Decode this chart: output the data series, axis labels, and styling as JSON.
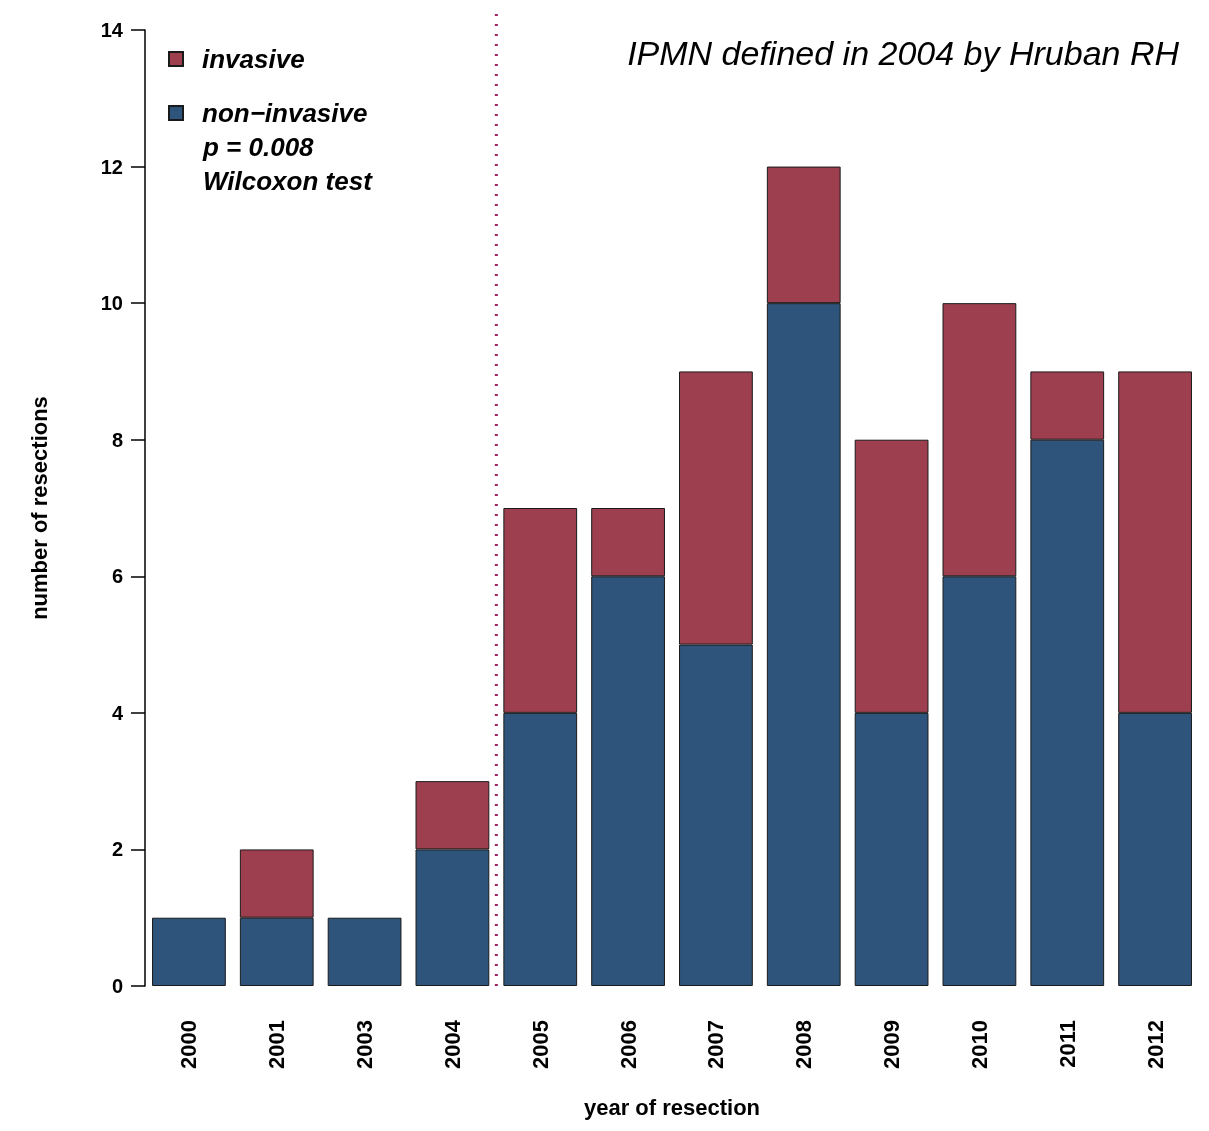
{
  "chart_data": {
    "type": "bar",
    "stacked": true,
    "xlabel": "year of resection",
    "ylabel": "number of resections",
    "categories": [
      "2000",
      "2001",
      "2003",
      "2004",
      "2005",
      "2006",
      "2007",
      "2008",
      "2009",
      "2010",
      "2011",
      "2012"
    ],
    "series": [
      {
        "name": "non−invasive",
        "color": "#2e547c",
        "values": [
          1,
          1,
          1,
          2,
          4,
          6,
          5,
          10,
          4,
          6,
          8,
          4
        ]
      },
      {
        "name": "invasive",
        "color": "#9e3f50",
        "values": [
          0,
          1,
          0,
          1,
          3,
          1,
          4,
          2,
          4,
          4,
          1,
          5
        ]
      }
    ],
    "ylim": [
      0,
      14
    ],
    "yticks": [
      0,
      2,
      4,
      6,
      8,
      10,
      12,
      14
    ],
    "grid": false,
    "legend": "top left",
    "ref_lines": [
      {
        "axis": "x",
        "value": "2004",
        "color": "#9b2360",
        "line_style": "dotted"
      }
    ],
    "annotations": [
      "IPMN defined in 2004 by Hruban RH",
      "p = 0.008",
      "Wilcoxon test"
    ]
  }
}
